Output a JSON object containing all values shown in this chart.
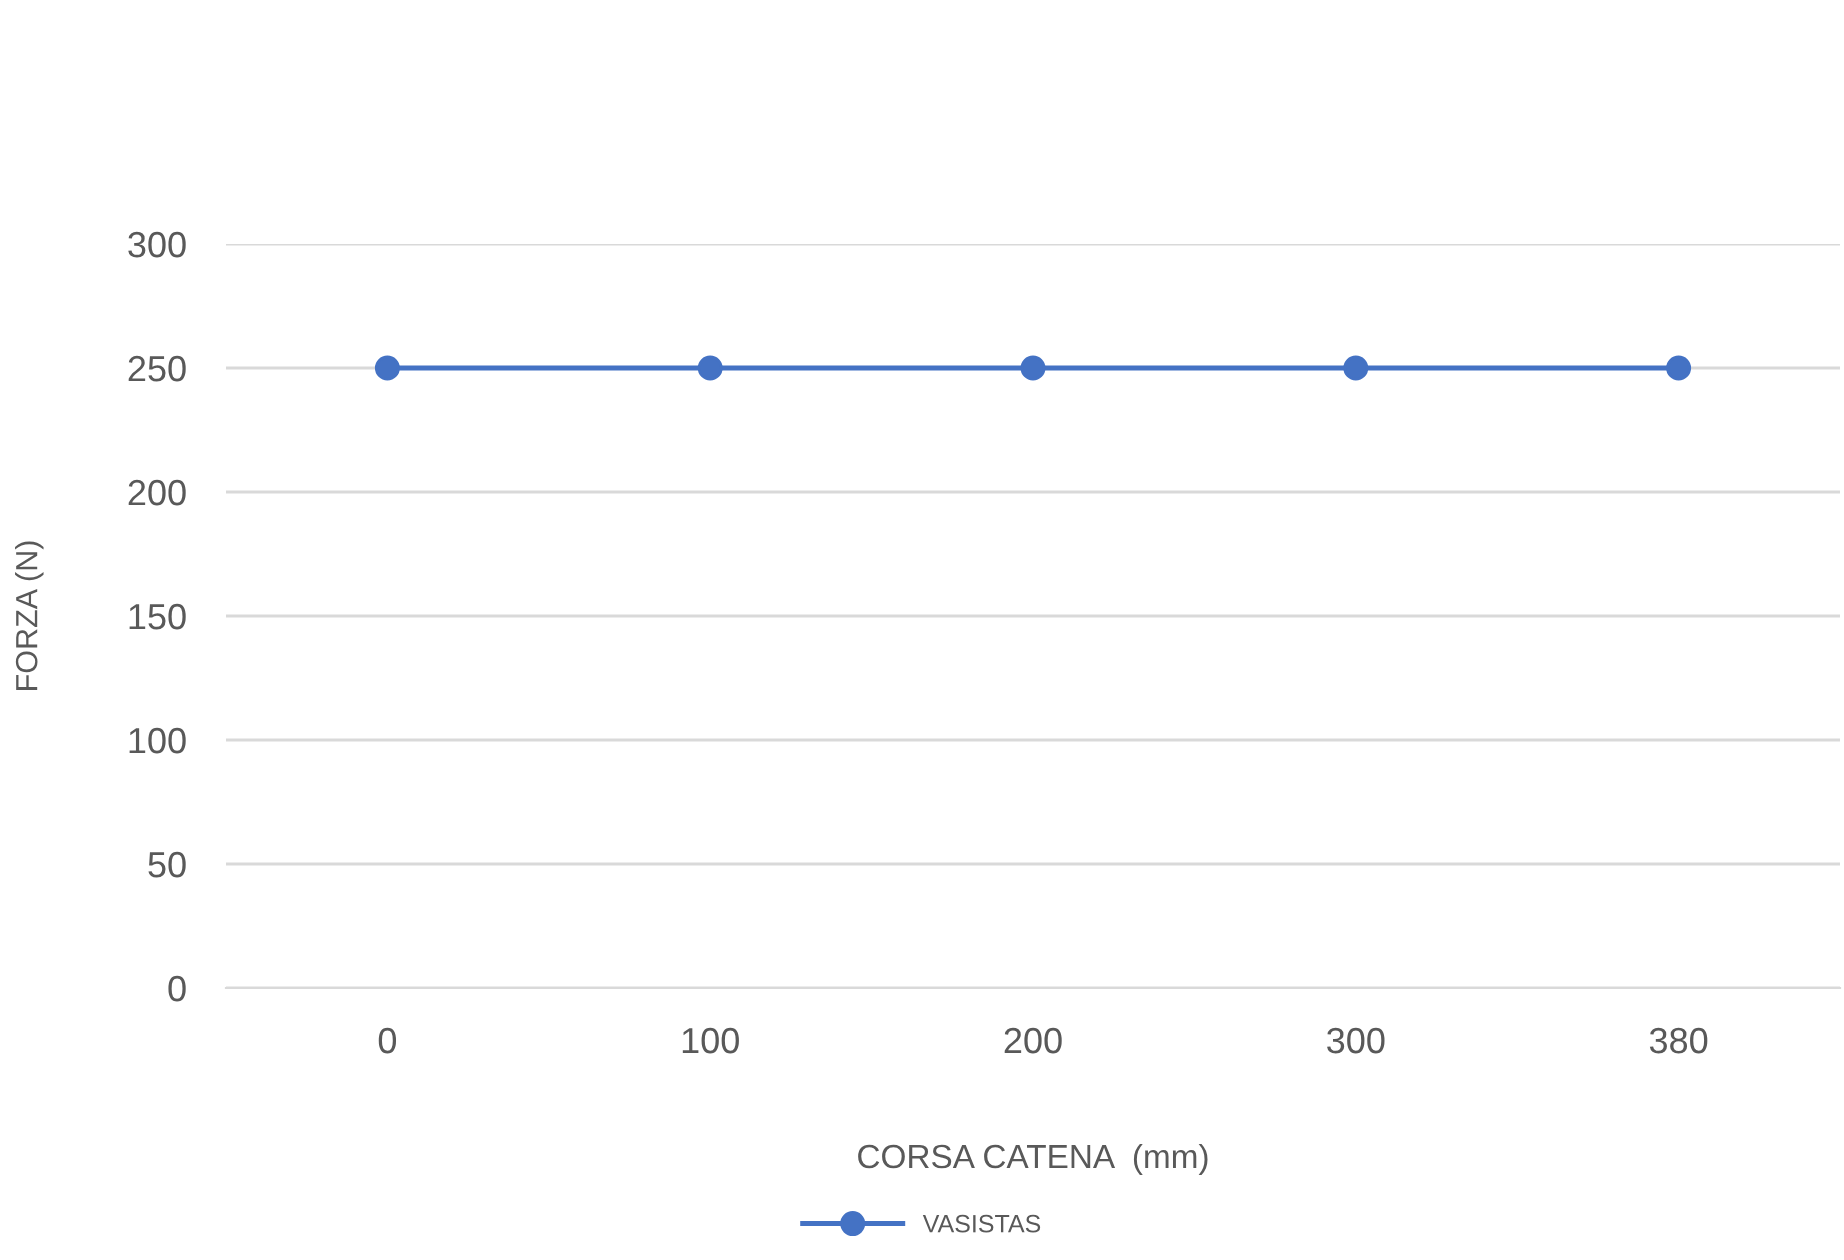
{
  "chart_data": {
    "type": "line",
    "xlabel": "CORSA CATENA  (mm)",
    "ylabel": "FORZA (N)",
    "categories": [
      "0",
      "100",
      "200",
      "300",
      "380"
    ],
    "series": [
      {
        "name": "VASISTAS",
        "color": "#4472c4",
        "values": [
          250,
          250,
          250,
          250,
          250
        ]
      }
    ],
    "ylim": [
      0,
      300
    ],
    "yticks": [
      0,
      50,
      100,
      150,
      200,
      250,
      300
    ],
    "grid": "y",
    "legend": "bottom",
    "marker": "circle",
    "line_style": "solid"
  }
}
